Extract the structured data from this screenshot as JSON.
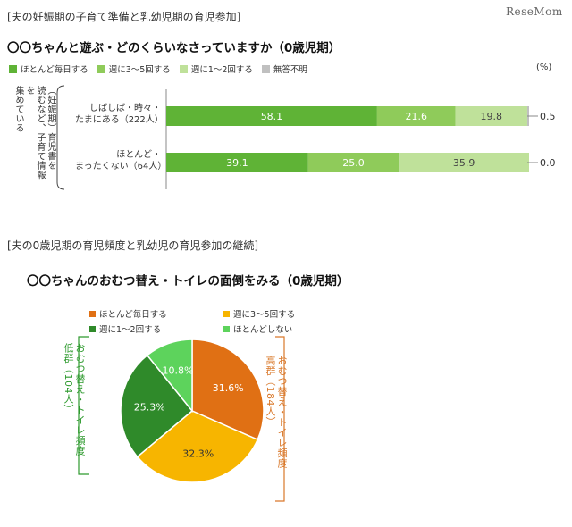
{
  "site": {
    "logo": "ReseMom"
  },
  "sections": {
    "s1": "[夫の妊娠期の子育て準備と乳幼児期の育児参加]",
    "s2": "[夫の0歳児期の育児頻度と乳幼児の育児参加の継続]"
  },
  "group_label": {
    "line1": "（妊娠期）育児書を",
    "line2": "読むなど、子育て情報を",
    "line3": "集めている"
  },
  "bar_chart_rows": [
    {
      "line1": "しばしば・時々・",
      "line2": "たまにある（222人）"
    },
    {
      "line1": "ほとんど・",
      "line2": "まったくない（64人）"
    }
  ],
  "pie_side": {
    "left": {
      "line1": "おむつ替え・トイレ頻度",
      "line2": "低群（104人）"
    },
    "right": {
      "line1": "おむつ替え・トイレ頻度",
      "line2": "高群（184人）"
    }
  },
  "colors": {
    "bar_daily": "#5fb336",
    "bar_3to5": "#8fcb5a",
    "bar_1to2": "#bfe19a",
    "bar_na": "#c0c0c0",
    "pie_daily": "#e07014",
    "pie_3to5": "#f7b500",
    "pie_1to2": "#2f8a2a",
    "pie_rare": "#5dd35c",
    "bracket_left": "#2e9a2e",
    "bracket_right": "#d9782a"
  },
  "chart_data": [
    {
      "type": "bar",
      "title": "〇〇ちゃんと遊ぶ・どのくらいなさっていますか（0歳児期）",
      "unit": "(%)",
      "stacked": true,
      "orientation": "horizontal",
      "categories": [
        "しばしば・時々・たまにある（222人）",
        "ほとんど・まったくない（64人）"
      ],
      "series": [
        {
          "name": "ほとんど毎日する",
          "values": [
            58.1,
            39.1
          ]
        },
        {
          "name": "週に3〜5回する",
          "values": [
            21.6,
            25.0
          ]
        },
        {
          "name": "週に1〜2回する",
          "values": [
            19.8,
            35.9
          ]
        },
        {
          "name": "無答不明",
          "values": [
            0.5,
            0.0
          ]
        }
      ],
      "value_labels": [
        [
          "58.1",
          "21.6",
          "19.8",
          "0.5"
        ],
        [
          "39.1",
          "25.0",
          "35.9",
          "0.0"
        ]
      ],
      "xlim": [
        0,
        100
      ],
      "legend": "top"
    },
    {
      "type": "pie",
      "title": "〇〇ちゃんのおむつ替え・トイレの面倒をみる（0歳児期）",
      "labels": [
        "ほとんど毎日する",
        "週に3〜5回する",
        "週に1〜2回する",
        "ほとんどしない"
      ],
      "values": [
        31.6,
        32.3,
        25.3,
        10.8
      ],
      "value_labels": [
        "31.6%",
        "32.3%",
        "25.3%",
        "10.8%"
      ],
      "legend": "top"
    }
  ]
}
